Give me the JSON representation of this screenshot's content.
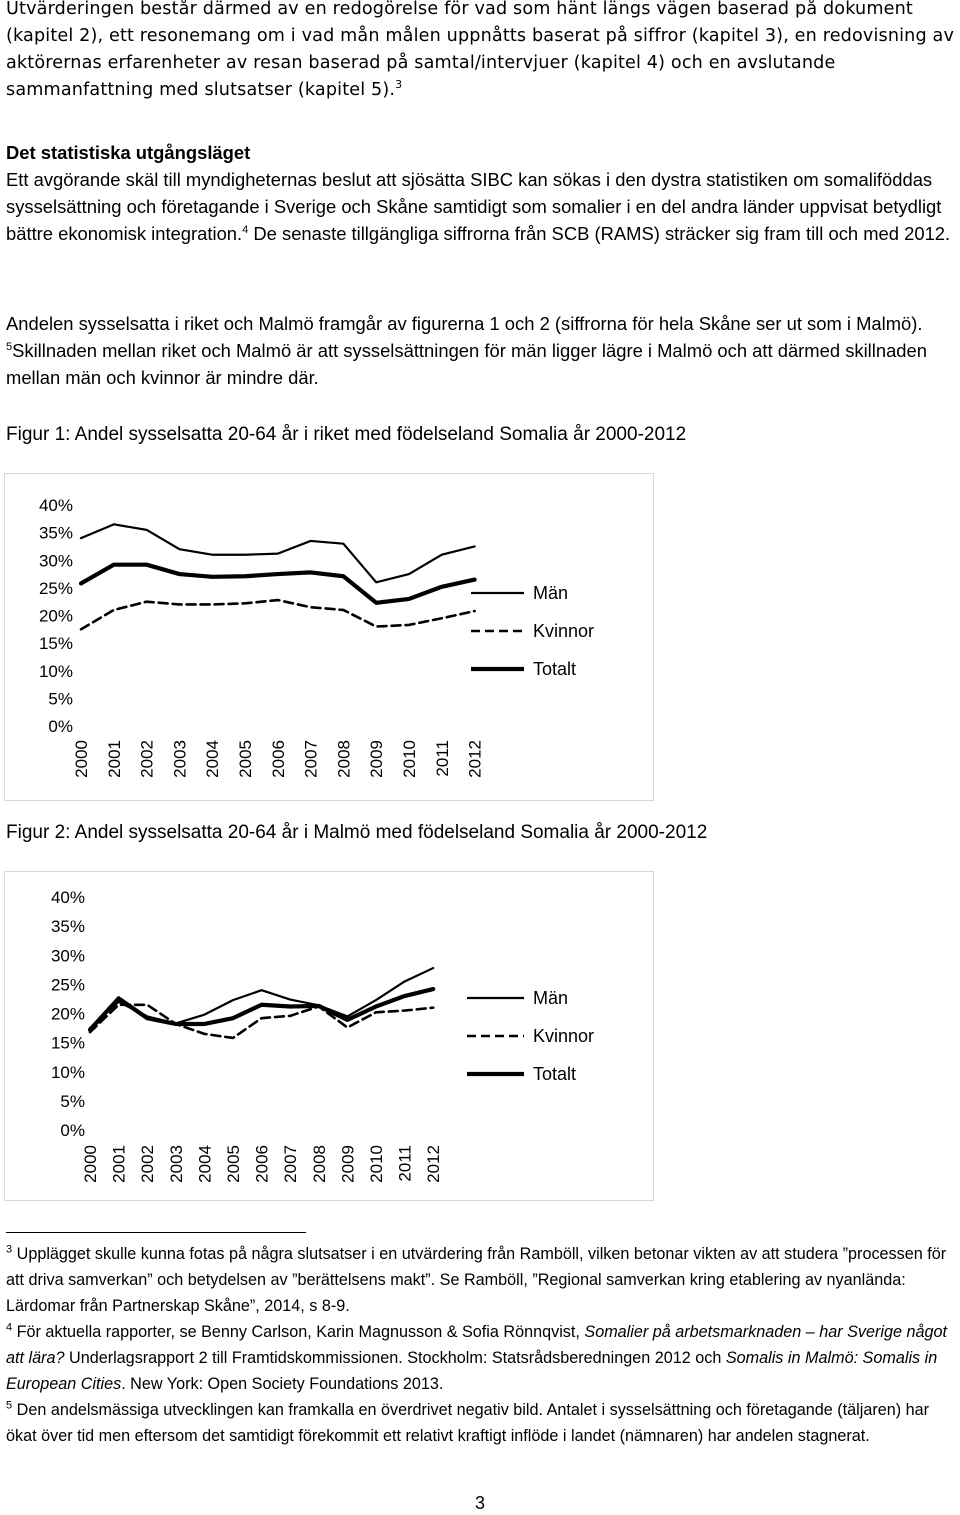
{
  "intro": "Utvärderingen består därmed av en redogörelse för vad som hänt längs vägen baserad på dokument (kapitel 2), ett resonemang om i vad mån målen uppnåtts baserat på siffror (kapitel 3), en redovisning av aktörernas erfarenheter av resan baserad på samtal/intervjuer (kapitel 4) och en avslutande sammanfattning med slutsatser (kapitel 5).",
  "intro_ref": "3",
  "section": {
    "heading": "Det statistiska utgångsläget",
    "p1_a": "Ett avgörande skäl till myndigheternas beslut att sjösätta SIBC kan sökas i den dystra statistiken om somaliföddas sysselsättning och företagande i Sverige och Skåne samtidigt som somalier i en del andra länder uppvisat betydligt bättre ekonomisk integration.",
    "p1_ref": "4",
    "p1_b": " De senaste tillgängliga siffrorna från SCB (RAMS) sträcker sig fram till och med 2012.",
    "p2_a": "Andelen sysselsatta i riket och Malmö framgår av figurerna 1 och 2 (siffrorna för hela Skåne ser ut som i Malmö). ",
    "p2_ref": "5",
    "p2_b": "Skillnaden mellan riket och Malmö är att sysselsättningen för män ligger lägre i Malmö och att därmed skillnaden mellan män och kvinnor är mindre där."
  },
  "figure1": {
    "caption": "Figur 1: Andel sysselsatta 20-64 år i riket med födelseland Somalia år 2000-2012"
  },
  "figure2": {
    "caption": "Figur 2: Andel sysselsatta 20-64 år i Malmö med födelseland Somalia år 2000-2012"
  },
  "chart_data": [
    {
      "type": "line",
      "title": "",
      "x": [
        "2000",
        "2001",
        "2002",
        "2003",
        "2004",
        "2005",
        "2006",
        "2007",
        "2008",
        "2009",
        "2010",
        "2011",
        "2012"
      ],
      "y_ticks": [
        "0%",
        "5%",
        "10%",
        "15%",
        "20%",
        "25%",
        "30%",
        "35%",
        "40%"
      ],
      "ylim": [
        0,
        40
      ],
      "legend_position": "right",
      "grid": false,
      "series": [
        {
          "name": "Män",
          "style": "thin-solid",
          "values": [
            34,
            36.5,
            35.5,
            32,
            31,
            31,
            31.2,
            33.5,
            33,
            26,
            27.5,
            31,
            32.5
          ]
        },
        {
          "name": "Kvinnor",
          "style": "dashed",
          "values": [
            17.5,
            21,
            22.5,
            22,
            22,
            22.2,
            22.8,
            21.5,
            21,
            18,
            18.3,
            19.5,
            20.8
          ]
        },
        {
          "name": "Totalt",
          "style": "thick-solid",
          "values": [
            25.8,
            29.2,
            29.2,
            27.5,
            27,
            27.1,
            27.5,
            27.8,
            27.1,
            22.3,
            23,
            25.2,
            26.5
          ]
        }
      ]
    },
    {
      "type": "line",
      "title": "",
      "x": [
        "2000",
        "2001",
        "2002",
        "2003",
        "2004",
        "2005",
        "2006",
        "2007",
        "2008",
        "2009",
        "2010",
        "2011",
        "2012"
      ],
      "y_ticks": [
        "0%",
        "5%",
        "10%",
        "15%",
        "20%",
        "25%",
        "30%",
        "35%",
        "40%"
      ],
      "ylim": [
        0,
        40
      ],
      "legend_position": "right",
      "grid": false,
      "series": [
        {
          "name": "Män",
          "style": "thin-solid",
          "values": [
            17.5,
            22,
            19.5,
            18.3,
            19.8,
            22.3,
            24,
            22.4,
            21.4,
            19.5,
            22.3,
            25.5,
            27.8
          ]
        },
        {
          "name": "Kvinnor",
          "style": "dashed",
          "values": [
            16.8,
            21.5,
            21.5,
            18.2,
            16.5,
            15.8,
            19.2,
            19.6,
            21.2,
            17.6,
            20.2,
            20.5,
            21
          ]
        },
        {
          "name": "Totalt",
          "style": "thick-solid",
          "values": [
            17.2,
            22.6,
            19.2,
            18.2,
            18.2,
            19.2,
            21.5,
            21.2,
            21.3,
            18.9,
            21.2,
            23,
            24.2
          ]
        }
      ]
    }
  ],
  "footnotes": [
    {
      "num": "3",
      "runs": [
        {
          "t": "Upplägget skulle kunna fotas på några slutsatser i en utvärdering från Ramböll, vilken betonar vikten av att studera ”processen för att driva samverkan” och betydelsen av ”berättelsens makt”. Se Ramböll, ”Regional samverkan kring etablering av nyanlända: Lärdomar från Partnerskap Skåne”, 2014, s 8-9.",
          "i": false
        }
      ]
    },
    {
      "num": "4",
      "runs": [
        {
          "t": "För aktuella rapporter, se Benny Carlson, Karin Magnusson & Sofia Rönnqvist, ",
          "i": false
        },
        {
          "t": "Somalier på arbetsmarknaden – har Sverige något att lära?",
          "i": true
        },
        {
          "t": " Underlagsrapport 2 till Framtidskommissionen. Stockholm: Statsrådsberedningen 2012 och ",
          "i": false
        },
        {
          "t": "Somalis in Malmö: Somalis in European Cities",
          "i": true
        },
        {
          "t": ". New York: Open Society Foundations 2013.",
          "i": false
        }
      ]
    },
    {
      "num": "5",
      "runs": [
        {
          "t": "Den andelsmässiga utvecklingen kan framkalla en överdrivet negativ bild. Antalet i sysselsättning och företagande (täljaren) har ökat över tid men eftersom det samtidigt förekommit ett relativt kraftigt inflöde i landet (nämnaren) har andelen stagnerat.",
          "i": false
        }
      ]
    }
  ],
  "page_number": "3"
}
